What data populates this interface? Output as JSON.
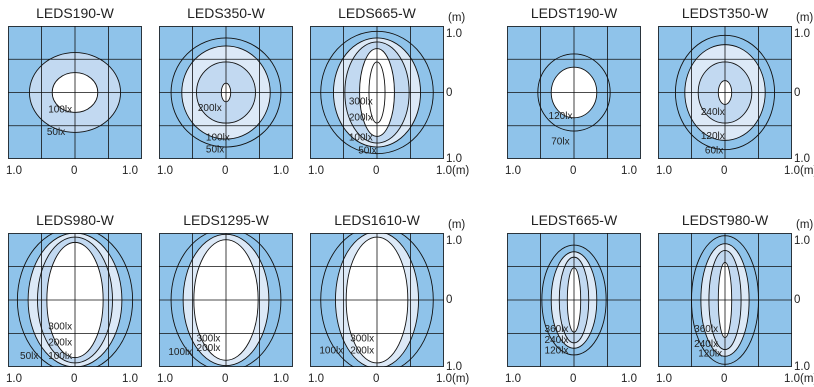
{
  "colors": {
    "background": "#8fc3ea",
    "ring_light": "#dce9f7",
    "ring_mid": "#c2d9f1",
    "center": "#ffffff",
    "line": "#111111"
  },
  "axis": {
    "x_ticks": [
      "1.0",
      "0",
      "1.0"
    ],
    "x_last_with_unit": "1.0(m)",
    "y_ticks": [
      "1.0",
      "0",
      "1.0"
    ],
    "unit": "(m)"
  },
  "panels": [
    {
      "id": "leds190w",
      "title": "LEDS190-W",
      "contours": [
        {
          "rx": 0.68,
          "ry": 0.6,
          "fill": "mid",
          "stroke": true
        },
        {
          "rx": 0.34,
          "ry": 0.3,
          "fill": "center",
          "stroke": true
        }
      ],
      "labels": [
        {
          "text": "100lx",
          "x": -0.4,
          "y": -0.24
        },
        {
          "text": "50lx",
          "x": -0.42,
          "y": -0.58
        }
      ]
    },
    {
      "id": "leds350w",
      "title": "LEDS350-W",
      "contours": [
        {
          "rx": 0.82,
          "ry": 0.82,
          "fill": "none",
          "stroke": true
        },
        {
          "rx": 0.66,
          "ry": 0.7,
          "fill": "light",
          "stroke": true
        },
        {
          "rx": 0.44,
          "ry": 0.46,
          "fill": "mid",
          "stroke": true
        },
        {
          "rx": 0.07,
          "ry": 0.14,
          "fill": "center",
          "stroke": true
        }
      ],
      "labels": [
        {
          "text": "200lx",
          "x": -0.42,
          "y": -0.22
        },
        {
          "text": "100lx",
          "x": -0.3,
          "y": -0.66
        },
        {
          "text": "50lx",
          "x": -0.3,
          "y": -0.84
        }
      ]
    },
    {
      "id": "leds665w",
      "title": "LEDS665-W",
      "contours": [
        {
          "rx": 0.84,
          "ry": 0.92,
          "fill": "none",
          "stroke": true
        },
        {
          "rx": 0.65,
          "ry": 0.82,
          "fill": "light",
          "stroke": true
        },
        {
          "rx": 0.48,
          "ry": 0.76,
          "fill": "mid",
          "stroke": true
        },
        {
          "rx": 0.26,
          "ry": 0.66,
          "fill": "center",
          "stroke": true
        },
        {
          "rx": 0.12,
          "ry": 0.46,
          "fill": "center",
          "stroke": true
        }
      ],
      "labels": [
        {
          "text": "300lx",
          "x": -0.42,
          "y": -0.12
        },
        {
          "text": "200lx",
          "x": -0.42,
          "y": -0.36
        },
        {
          "text": "100lx",
          "x": -0.42,
          "y": -0.66
        },
        {
          "text": "50lx",
          "x": -0.28,
          "y": -0.86
        }
      ]
    },
    {
      "id": "ledst190w",
      "title": "LEDST190-W",
      "contours": [
        {
          "rx": 0.54,
          "ry": 0.58,
          "fill": "none",
          "stroke": true
        },
        {
          "rx": 0.34,
          "ry": 0.38,
          "fill": "center",
          "stroke": true
        }
      ],
      "labels": [
        {
          "text": "120lx",
          "x": -0.38,
          "y": -0.34
        },
        {
          "text": "70lx",
          "x": -0.34,
          "y": -0.72
        }
      ]
    },
    {
      "id": "ledst350w",
      "title": "LEDST350-W",
      "contours": [
        {
          "rx": 0.74,
          "ry": 0.86,
          "fill": "none",
          "stroke": true
        },
        {
          "rx": 0.6,
          "ry": 0.72,
          "fill": "light",
          "stroke": true
        },
        {
          "rx": 0.4,
          "ry": 0.46,
          "fill": "mid",
          "stroke": true
        },
        {
          "rx": 0.1,
          "ry": 0.18,
          "fill": "center",
          "stroke": true
        }
      ],
      "labels": [
        {
          "text": "240lx",
          "x": -0.36,
          "y": -0.28
        },
        {
          "text": "120lx",
          "x": -0.36,
          "y": -0.64
        },
        {
          "text": "60lx",
          "x": -0.3,
          "y": -0.86
        }
      ]
    },
    {
      "id": "leds980w",
      "title": "LEDS980-W",
      "contours": [
        {
          "rx": 0.86,
          "ry": 1.08,
          "fill": "none",
          "stroke": true
        },
        {
          "rx": 0.7,
          "ry": 1.0,
          "fill": "light",
          "stroke": true
        },
        {
          "rx": 0.56,
          "ry": 0.94,
          "fill": "mid",
          "stroke": true
        },
        {
          "rx": 0.42,
          "ry": 0.86,
          "fill": "center",
          "stroke": true
        }
      ],
      "labels": [
        {
          "text": "300lx",
          "x": -0.4,
          "y": -0.38
        },
        {
          "text": "200lx",
          "x": -0.4,
          "y": -0.62
        },
        {
          "text": "100lx",
          "x": -0.4,
          "y": -0.82
        },
        {
          "text": "50lx",
          "x": -0.82,
          "y": -0.82
        }
      ]
    },
    {
      "id": "leds1295w",
      "title": "LEDS1295-W",
      "contours": [
        {
          "rx": 0.82,
          "ry": 1.06,
          "fill": "none",
          "stroke": true
        },
        {
          "rx": 0.64,
          "ry": 0.98,
          "fill": "light",
          "stroke": true
        },
        {
          "rx": 0.48,
          "ry": 0.9,
          "fill": "center",
          "stroke": true
        }
      ],
      "labels": [
        {
          "text": "300lx",
          "x": -0.44,
          "y": -0.56
        },
        {
          "text": "200lx",
          "x": -0.44,
          "y": -0.7
        },
        {
          "text": "100lx",
          "x": -0.86,
          "y": -0.76
        }
      ]
    },
    {
      "id": "leds1610w",
      "title": "LEDS1610-W",
      "contours": [
        {
          "rx": 0.84,
          "ry": 1.1,
          "fill": "none",
          "stroke": true
        },
        {
          "rx": 0.62,
          "ry": 1.02,
          "fill": "light",
          "stroke": true
        },
        {
          "rx": 0.46,
          "ry": 0.94,
          "fill": "center",
          "stroke": true
        }
      ],
      "labels": [
        {
          "text": "300lx",
          "x": -0.4,
          "y": -0.56
        },
        {
          "text": "200lx",
          "x": -0.4,
          "y": -0.74
        },
        {
          "text": "100lx",
          "x": -0.86,
          "y": -0.74
        }
      ]
    },
    {
      "id": "ledst665w",
      "title": "LEDST665-W",
      "contours": [
        {
          "rx": 0.48,
          "ry": 0.82,
          "fill": "none",
          "stroke": true
        },
        {
          "rx": 0.34,
          "ry": 0.72,
          "fill": "light",
          "stroke": true
        },
        {
          "rx": 0.22,
          "ry": 0.64,
          "fill": "mid",
          "stroke": true
        },
        {
          "rx": 0.1,
          "ry": 0.48,
          "fill": "center",
          "stroke": true
        }
      ],
      "labels": [
        {
          "text": "360lx",
          "x": -0.44,
          "y": -0.42
        },
        {
          "text": "240lx",
          "x": -0.44,
          "y": -0.58
        },
        {
          "text": "120lx",
          "x": -0.44,
          "y": -0.74
        }
      ]
    },
    {
      "id": "ledst980w",
      "title": "LEDST980-W",
      "contours": [
        {
          "rx": 0.5,
          "ry": 0.96,
          "fill": "none",
          "stroke": true
        },
        {
          "rx": 0.36,
          "ry": 0.84,
          "fill": "light",
          "stroke": true
        },
        {
          "rx": 0.24,
          "ry": 0.74,
          "fill": "mid",
          "stroke": true
        },
        {
          "rx": 0.1,
          "ry": 0.56,
          "fill": "center",
          "stroke": true
        }
      ],
      "labels": [
        {
          "text": "360lx",
          "x": -0.46,
          "y": -0.42
        },
        {
          "text": "240lx",
          "x": -0.46,
          "y": -0.64
        },
        {
          "text": "120lx",
          "x": -0.4,
          "y": -0.78
        }
      ]
    }
  ]
}
